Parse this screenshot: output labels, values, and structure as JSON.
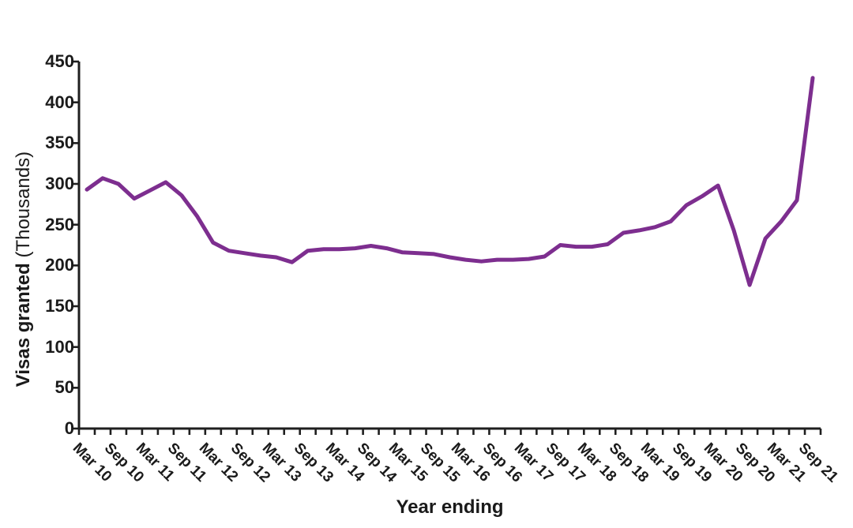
{
  "chart_data": {
    "type": "line",
    "title": "",
    "xlabel": "Year ending",
    "ylabel": "Visas granted (Thousands)",
    "ylabel_bold": "Visas granted",
    "ylabel_paren": " (Thousands)",
    "ylim": [
      0,
      450
    ],
    "y_tick_labels": [
      "0",
      "50",
      "100",
      "150",
      "200",
      "250",
      "300",
      "350",
      "400",
      "450"
    ],
    "x_tick_labels": [
      "Mar 10",
      "Sep 10",
      "Mar 11",
      "Sep 11",
      "Mar 12",
      "Sep 12",
      "Mar 13",
      "Sep 13",
      "Mar 14",
      "Sep 14",
      "Mar 15",
      "Sep 15",
      "Mar 16",
      "Sep 16",
      "Mar 17",
      "Sep 17",
      "Mar 18",
      "Sep 18",
      "Mar 19",
      "Sep 19",
      "Mar 20",
      "Sep 20",
      "Mar 21",
      "Sep 21"
    ],
    "points_per_label": 2,
    "values": [
      293,
      307,
      300,
      282,
      292,
      302,
      286,
      260,
      228,
      218,
      215,
      212,
      210,
      204,
      218,
      220,
      220,
      221,
      224,
      221,
      216,
      215,
      214,
      210,
      207,
      205,
      207,
      207,
      208,
      211,
      225,
      223,
      223,
      226,
      240,
      243,
      247,
      254,
      274,
      285,
      298,
      243,
      176,
      233,
      254,
      280,
      430
    ],
    "line_color": "#7d2e8f",
    "axis_color": "#1f1f1f",
    "grid": "off",
    "legend": "none"
  }
}
